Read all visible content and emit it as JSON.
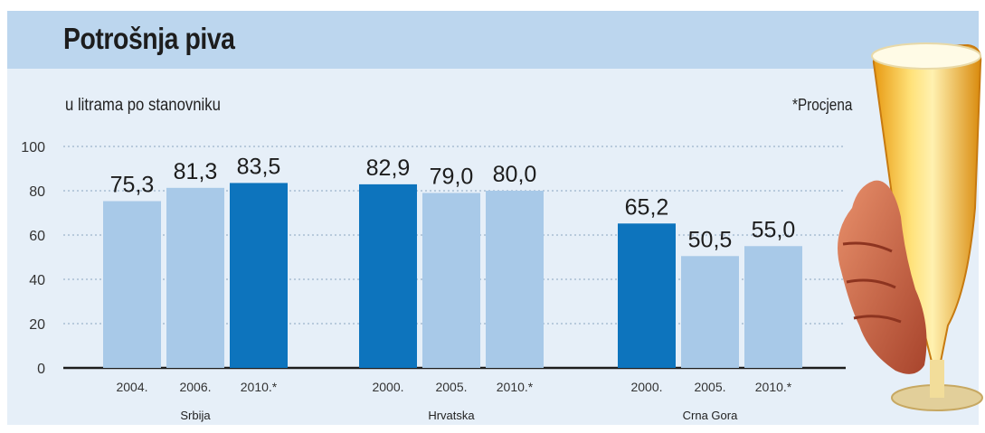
{
  "header": {
    "title": "Potrošnja piva",
    "subtitle": "u litrama po stanovniku",
    "note": "*Procjena"
  },
  "colors": {
    "highlight": "#0d74bd",
    "regular": "#a8c9e8",
    "title_band": "#bcd6ee",
    "plot_background": "#e6eff8"
  },
  "chart_data": {
    "type": "bar",
    "title": "Potrošnja piva",
    "subtitle": "u litrama po stanovniku",
    "ylim": [
      0,
      100
    ],
    "yticks": [
      0,
      20,
      40,
      60,
      80,
      100
    ],
    "grid": "dotted horizontal",
    "groups": [
      {
        "name": "Srbija",
        "bars": [
          {
            "label": "2004.",
            "value": 75.3,
            "value_label": "75,3",
            "highlight": false
          },
          {
            "label": "2006.",
            "value": 81.3,
            "value_label": "81,3",
            "highlight": false
          },
          {
            "label": "2010.*",
            "value": 83.5,
            "value_label": "83,5",
            "highlight": true
          }
        ]
      },
      {
        "name": "Hrvatska",
        "bars": [
          {
            "label": "2000.",
            "value": 82.9,
            "value_label": "82,9",
            "highlight": true
          },
          {
            "label": "2005.",
            "value": 79.0,
            "value_label": "79,0",
            "highlight": false
          },
          {
            "label": "2010.*",
            "value": 80.0,
            "value_label": "80,0",
            "highlight": false
          }
        ]
      },
      {
        "name": "Crna Gora",
        "bars": [
          {
            "label": "2000.",
            "value": 65.2,
            "value_label": "65,2",
            "highlight": true
          },
          {
            "label": "2005.",
            "value": 50.5,
            "value_label": "50,5",
            "highlight": false
          },
          {
            "label": "2010.*",
            "value": 55.0,
            "value_label": "55,0",
            "highlight": false
          }
        ]
      }
    ],
    "annotation": "*Procjena"
  }
}
